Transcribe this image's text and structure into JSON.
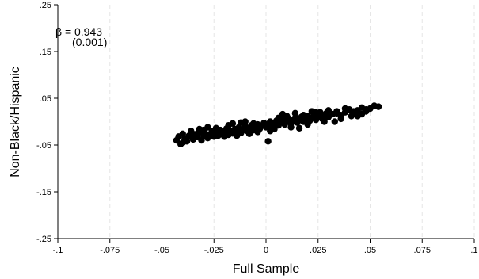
{
  "chart_data": {
    "type": "scatter",
    "xlabel": "Full Sample",
    "ylabel": "Non-Black/Hispanic",
    "xlim": [
      -0.1,
      0.1
    ],
    "ylim": [
      -0.25,
      0.25
    ],
    "x_ticks": [
      -0.1,
      -0.075,
      -0.05,
      -0.025,
      0,
      0.025,
      0.05,
      0.075,
      0.1
    ],
    "x_tick_labels": [
      "-.1",
      "-.075",
      "-.05",
      "-.025",
      "0",
      ".025",
      ".05",
      ".075",
      ".1"
    ],
    "y_ticks": [
      0.25,
      0.15,
      0.05,
      -0.05,
      -0.15,
      -0.25
    ],
    "y_tick_labels": [
      ".25",
      ".15",
      ".05",
      "-.05",
      "-.15",
      "-.25"
    ],
    "vertical_gridlines": true,
    "annotation": {
      "line1": "β = 0.943",
      "line2": "(0.001)"
    },
    "marker_color": "#000000",
    "grid_color": "#e6e6e6",
    "points": [
      [
        -0.043,
        -0.04
      ],
      [
        -0.042,
        -0.032
      ],
      [
        -0.041,
        -0.048
      ],
      [
        -0.04,
        -0.045
      ],
      [
        -0.039,
        -0.036
      ],
      [
        -0.038,
        -0.042
      ],
      [
        -0.037,
        -0.03
      ],
      [
        -0.036,
        -0.025
      ],
      [
        -0.035,
        -0.038
      ],
      [
        -0.034,
        -0.027
      ],
      [
        -0.033,
        -0.033
      ],
      [
        -0.032,
        -0.022
      ],
      [
        -0.031,
        -0.04
      ],
      [
        -0.03,
        -0.03
      ],
      [
        -0.029,
        -0.026
      ],
      [
        -0.028,
        -0.035
      ],
      [
        -0.027,
        -0.028
      ],
      [
        -0.026,
        -0.02
      ],
      [
        -0.025,
        -0.032
      ],
      [
        -0.024,
        -0.025
      ],
      [
        -0.023,
        -0.03
      ],
      [
        -0.022,
        -0.018
      ],
      [
        -0.021,
        -0.027
      ],
      [
        -0.02,
        -0.022
      ],
      [
        -0.019,
        -0.015
      ],
      [
        -0.018,
        -0.028
      ],
      [
        -0.017,
        -0.02
      ],
      [
        -0.016,
        -0.025
      ],
      [
        -0.015,
        -0.016
      ],
      [
        -0.014,
        -0.02
      ],
      [
        -0.013,
        -0.012
      ],
      [
        -0.012,
        -0.024
      ],
      [
        -0.011,
        -0.018
      ],
      [
        -0.01,
        -0.01
      ],
      [
        -0.009,
        -0.02
      ],
      [
        -0.008,
        -0.014
      ],
      [
        -0.007,
        -0.008
      ],
      [
        -0.006,
        -0.018
      ],
      [
        -0.005,
        -0.012
      ],
      [
        -0.004,
        -0.006
      ],
      [
        -0.003,
        -0.015
      ],
      [
        -0.002,
        -0.008
      ],
      [
        -0.001,
        -0.003
      ],
      [
        0.0,
        -0.012
      ],
      [
        0.001,
        -0.006
      ],
      [
        0.002,
        0.0
      ],
      [
        0.003,
        -0.01
      ],
      [
        0.004,
        -0.004
      ],
      [
        0.005,
        0.002
      ],
      [
        0.006,
        -0.008
      ],
      [
        0.007,
        -0.002
      ],
      [
        0.008,
        0.004
      ],
      [
        0.009,
        -0.006
      ],
      [
        0.01,
        0.0
      ],
      [
        0.011,
        0.006
      ],
      [
        0.012,
        -0.004
      ],
      [
        0.013,
        0.002
      ],
      [
        0.014,
        0.008
      ],
      [
        0.015,
        -0.002
      ],
      [
        0.016,
        0.004
      ],
      [
        0.017,
        0.01
      ],
      [
        0.018,
        0.0
      ],
      [
        0.019,
        0.006
      ],
      [
        0.02,
        0.012
      ],
      [
        0.021,
        0.002
      ],
      [
        0.022,
        0.008
      ],
      [
        0.023,
        0.014
      ],
      [
        0.024,
        0.004
      ],
      [
        0.025,
        0.01
      ],
      [
        0.026,
        0.016
      ],
      [
        0.027,
        0.006
      ],
      [
        0.028,
        0.012
      ],
      [
        0.029,
        0.018
      ],
      [
        0.03,
        0.01
      ],
      [
        0.032,
        0.016
      ],
      [
        0.034,
        0.022
      ],
      [
        0.036,
        0.014
      ],
      [
        0.038,
        0.02
      ],
      [
        0.04,
        0.026
      ],
      [
        0.042,
        0.018
      ],
      [
        0.044,
        0.024
      ],
      [
        0.046,
        0.03
      ],
      [
        0.048,
        0.022
      ],
      [
        0.05,
        0.028
      ],
      [
        0.052,
        0.034
      ],
      [
        0.054,
        0.032
      ],
      [
        0.046,
        0.016
      ],
      [
        0.041,
        0.012
      ],
      [
        0.033,
        0.0
      ],
      [
        0.024,
        0.02
      ],
      [
        0.016,
        -0.014
      ],
      [
        0.01,
        0.012
      ],
      [
        0.002,
        -0.02
      ],
      [
        0.001,
        -0.042
      ],
      [
        -0.006,
        -0.004
      ],
      [
        -0.012,
        -0.002
      ],
      [
        -0.018,
        -0.008
      ],
      [
        -0.024,
        -0.014
      ],
      [
        -0.03,
        -0.018
      ],
      [
        -0.036,
        -0.02
      ],
      [
        -0.04,
        -0.026
      ],
      [
        -0.02,
        -0.032
      ],
      [
        -0.014,
        -0.03
      ],
      [
        -0.008,
        -0.026
      ],
      [
        -0.004,
        -0.022
      ],
      [
        0.004,
        -0.016
      ],
      [
        0.012,
        -0.012
      ],
      [
        0.02,
        -0.006
      ],
      [
        0.028,
        0.0
      ],
      [
        0.036,
        0.006
      ],
      [
        0.044,
        0.012
      ],
      [
        0.008,
        0.016
      ],
      [
        0.014,
        0.018
      ],
      [
        0.022,
        0.022
      ],
      [
        0.03,
        0.024
      ],
      [
        0.038,
        0.028
      ],
      [
        -0.028,
        -0.012
      ],
      [
        -0.032,
        -0.016
      ],
      [
        -0.016,
        -0.004
      ],
      [
        -0.01,
        0.0
      ],
      [
        0.006,
        0.008
      ],
      [
        0.018,
        0.014
      ],
      [
        0.026,
        0.02
      ],
      [
        0.034,
        0.018
      ],
      [
        0.042,
        0.022
      ],
      [
        0.048,
        0.026
      ]
    ]
  }
}
